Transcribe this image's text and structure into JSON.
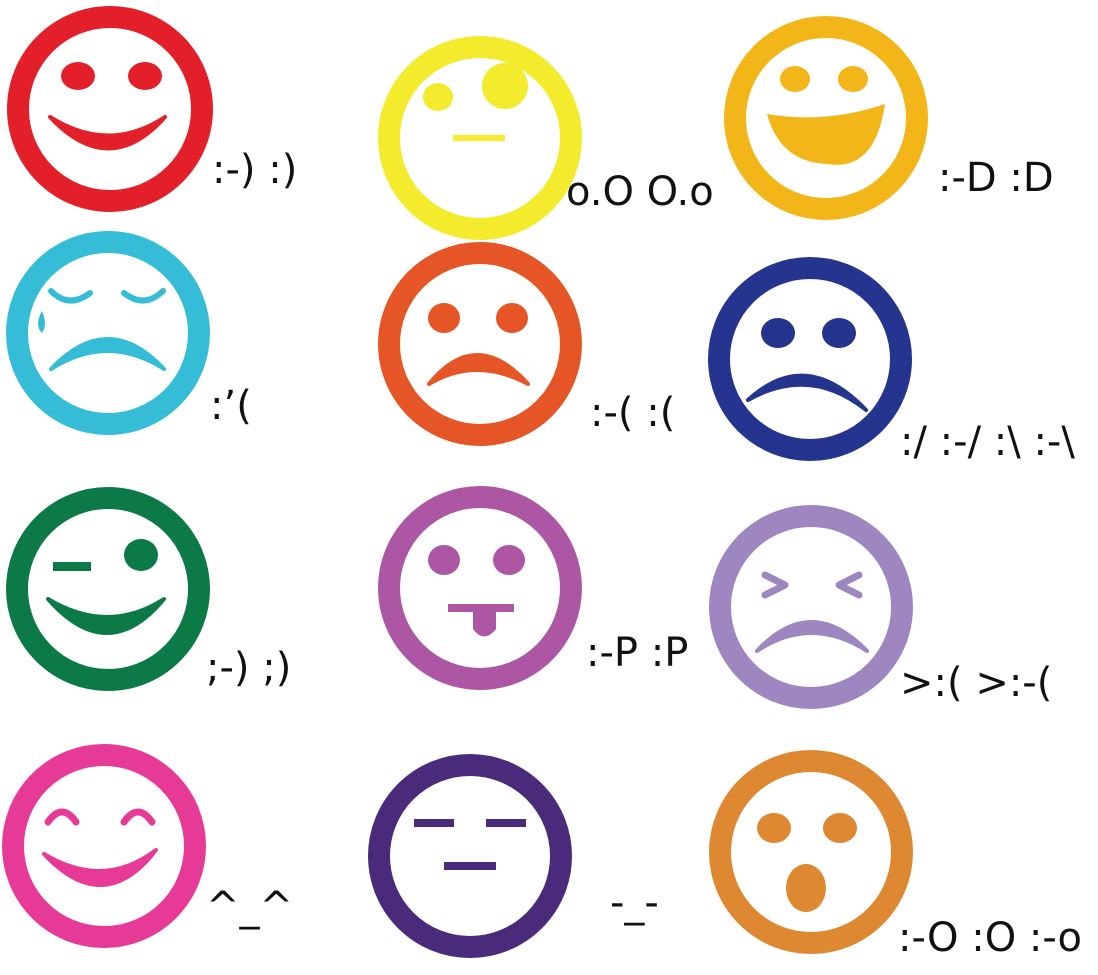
{
  "emoticons": [
    {
      "label": ":-) :)",
      "color": "#e3202a",
      "face": "smile-icon"
    },
    {
      "label": "o.O O.o",
      "color": "#f3eb2c",
      "face": "confused-icon"
    },
    {
      "label": ":-D :D",
      "color": "#f2b619",
      "face": "big-grin-icon"
    },
    {
      "label": ":’(",
      "color": "#35bdd8",
      "face": "crying-icon"
    },
    {
      "label": ":-( :(",
      "color": "#e65525",
      "face": "sad-icon"
    },
    {
      "label": ":/ :-/ :\\ :-\\",
      "color": "#25348e",
      "face": "frown-icon"
    },
    {
      "label": ";-) ;)",
      "color": "#0b7a47",
      "face": "wink-icon"
    },
    {
      "label": ":-P :P",
      "color": "#ad56a3",
      "face": "tongue-out-icon"
    },
    {
      "label": ">:( >:-(",
      "color": "#9e87c1",
      "face": "angry-icon"
    },
    {
      "label": "^_^",
      "color": "#e73a96",
      "face": "happy-eyes-icon"
    },
    {
      "label": "-_-",
      "color": "#4a2a7a",
      "face": "annoyed-icon"
    },
    {
      "label": ":-O :O :-o",
      "color": "#de8832",
      "face": "surprised-icon"
    }
  ]
}
